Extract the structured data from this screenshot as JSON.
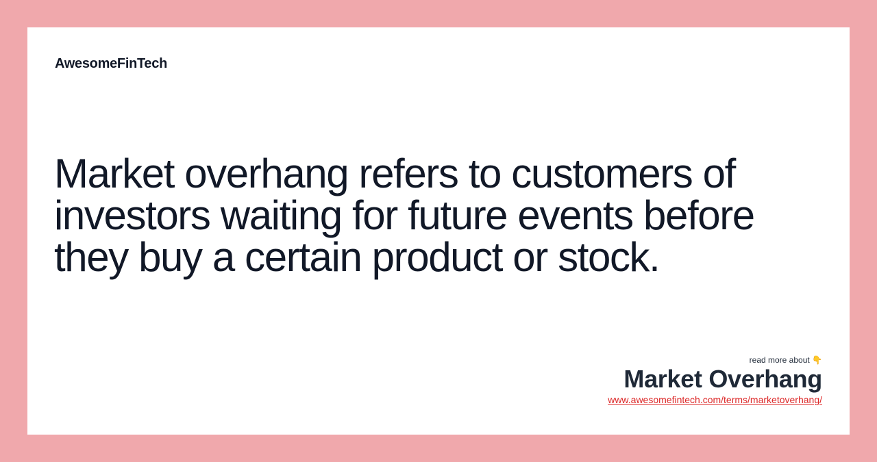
{
  "brand": {
    "name": "AwesomeFinTech"
  },
  "definition": {
    "text": "Market overhang refers to customers of investors waiting for future events before they buy a certain product or stock."
  },
  "footer": {
    "read_more_label": "read more about 👇",
    "term_title": "Market Overhang",
    "term_url": "www.awesomefintech.com/terms/marketoverhang/"
  },
  "colors": {
    "background": "#f0a8ac",
    "card": "#ffffff",
    "text": "#111827",
    "link": "#dc2626"
  }
}
